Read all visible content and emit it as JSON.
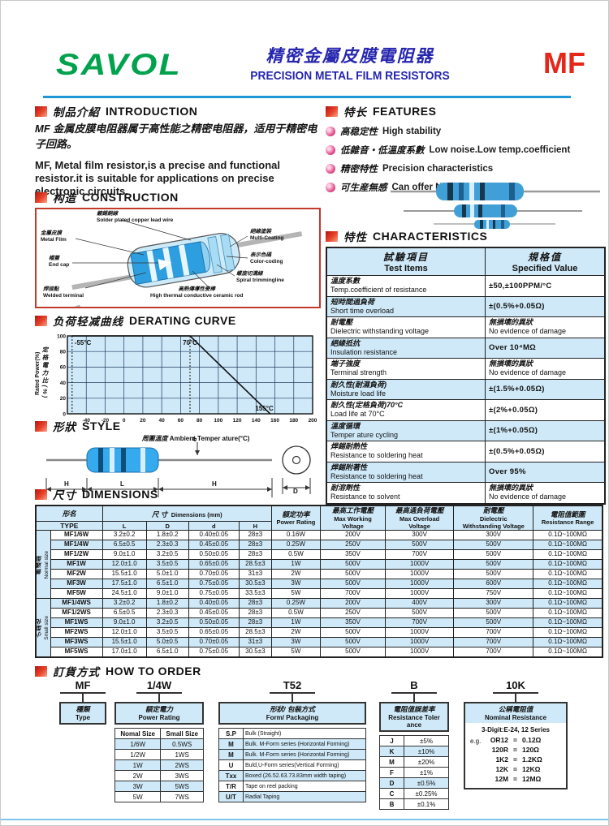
{
  "header": {
    "logo": "SAVOL",
    "title_cn": "精密金屬皮膜電阻器",
    "title_en": "PRECISION METAL FILM RESISTORS",
    "product_code": "MF"
  },
  "intro": {
    "title_cn": "制品介紹",
    "title_en": "INTRODUCTION",
    "body_cn": "MF 金属皮膜电阻器属于高性能之精密电阻器，适用于精密电子回路。",
    "body_en": "MF, Metal film resistor,is a precise and functional resistor.it is suitable for applications on precise electronic circuits."
  },
  "features": {
    "title_cn": "特长",
    "title_en": "FEATURES",
    "items": [
      {
        "cn": "高稳定性",
        "en": "High stability"
      },
      {
        "cn": "低雜音・低溫度系數",
        "en": "Low noise.Low temp.coefficient"
      },
      {
        "cn": "精密特性",
        "en": "Precision characteristics"
      },
      {
        "cn": "可生産無感",
        "en": "Can offer Non-Inductive"
      }
    ]
  },
  "construction": {
    "title_cn": "构造",
    "title_en": "CONSTRUCTION",
    "labels": {
      "lead": {
        "cn": "鍍錫銅線",
        "en": "Solder plated copper lead wire"
      },
      "film": {
        "cn": "金屬皮膜",
        "en": "Metal Film"
      },
      "cap": {
        "cn": "帽蓋",
        "en": "End cap"
      },
      "weld": {
        "cn": "焊接點",
        "en": "Welded terminal"
      },
      "coat": {
        "cn": "絕緣塗裝",
        "en": "Multi-Coating"
      },
      "color": {
        "cn": "表示色碼",
        "en": "Color-coding"
      },
      "spiral": {
        "cn": "螺旋切溝線",
        "en": "Spiral trimmingline"
      },
      "rod": {
        "cn": "高熱傳導性瓷棒",
        "en": "High thermal conductive ceramic rod"
      }
    }
  },
  "derating": {
    "title_cn": "负荷轻减曲线",
    "title_en": "DERATING CURVE"
  },
  "chart_data": {
    "type": "line",
    "title": "DERATING CURVE",
    "xlabel_cn": "周圍溫度",
    "xlabel_en": "Ambient Temper ature(°C)",
    "ylabel_cn": "定格電力比(%)",
    "ylabel_en": "Rated Power(%)",
    "x_ticks": [
      -40,
      -20,
      0,
      20,
      40,
      60,
      80,
      100,
      120,
      140,
      160,
      180,
      200
    ],
    "y_ticks": [
      0,
      20,
      40,
      60,
      80,
      100
    ],
    "xlim": [
      -60,
      200
    ],
    "ylim": [
      0,
      100
    ],
    "grid": true,
    "plot_bg": "#cfe9f8",
    "series": [
      {
        "name": "derating-line",
        "points": [
          [
            -55,
            100
          ],
          [
            70,
            100
          ],
          [
            155,
            0
          ]
        ]
      }
    ],
    "annotations": [
      {
        "label": "-55°C",
        "x": -55,
        "dashed": true,
        "pos": "top-right"
      },
      {
        "label": "70°C",
        "x": 70,
        "dashed": true,
        "pos": "top-mid"
      },
      {
        "label": "155°C",
        "x": 155,
        "dashed": false,
        "pos": "bottom-left"
      }
    ]
  },
  "characteristics": {
    "title_cn": "特性",
    "title_en": "CHARACTERISTICS",
    "col1_cn": "試驗項目",
    "col1_en": "Test Items",
    "col2_cn": "規格值",
    "col2_en": "Specified Value",
    "rows": [
      {
        "cn": "溫度系數",
        "en": "Temp.coefficient of resistance",
        "val_cn": "",
        "val_en": "±50,±100PPM/°C"
      },
      {
        "cn": "短時間過負荷",
        "en": "Short time overload",
        "val_cn": "",
        "val_en": "±(0.5%+0.05Ω)"
      },
      {
        "cn": "耐電壓",
        "en": "Dielectric withstanding voltage",
        "val_cn": "無損壞的異狀",
        "val_en": "No evidence of damage"
      },
      {
        "cn": "絕緣抵抗",
        "en": "Insulation resistance",
        "val_cn": "",
        "val_en": "Over 10⁴MΩ"
      },
      {
        "cn": "端子強度",
        "en": "Terminal strength",
        "val_cn": "無損壞的異狀",
        "val_en": "No evidence of damage"
      },
      {
        "cn": "耐久性(耐濕負荷)",
        "en": "Moisture load life",
        "val_cn": "",
        "val_en": "±(1.5%+0.05Ω)"
      },
      {
        "cn": "耐久性(定格負荷)70°C",
        "en": "Load life at 70°C",
        "val_cn": "",
        "val_en": "±(2%+0.05Ω)"
      },
      {
        "cn": "溫度循環",
        "en": "Temper ature cycling",
        "val_cn": "",
        "val_en": "±(1%+0.05Ω)"
      },
      {
        "cn": "焊錫耐熱性",
        "en": "Resistance to soldering heat",
        "val_cn": "",
        "val_en": "±(0.5%+0.05Ω)"
      },
      {
        "cn": "焊錫附著性",
        "en": "Resistance to soldering heat",
        "val_cn": "",
        "val_en": "Over 95%"
      },
      {
        "cn": "耐溶劑性",
        "en": "Resistance to solvent",
        "val_cn": "無損壞的異狀",
        "val_en": "No evidence of damage"
      }
    ]
  },
  "style_section": {
    "title_cn": "形狀",
    "title_en": "STYLE",
    "dims": {
      "h_left": "H",
      "l": "L",
      "h_right": "H",
      "d": "d",
      "big_d": "D"
    }
  },
  "dimensions": {
    "title_cn": "尺寸",
    "title_en": "DIMENSIONS",
    "headers": {
      "type_cn": "形名",
      "type_en": "TYPE",
      "dims_cn": "尺 寸",
      "dims_en": "Dimensions (mm)",
      "l": "L",
      "d_cap": "D",
      "d_low": "d",
      "h": "H",
      "power_cn": "額定功率",
      "power_en": "Power Rating",
      "work_cn": "最高工作電壓",
      "work_en1": "Max Working",
      "work_en2": "Voltage",
      "over_cn": "最高過負荷電壓",
      "over_en1": "Max Overload",
      "over_en2": "Voltage",
      "diel_cn": "耐電壓",
      "diel_en1": "Dielectric",
      "diel_en2": "Withstanding Voltage",
      "range_cn": "電阻值範圍",
      "range_en": "Resistance Range"
    },
    "groups": [
      {
        "label_cn": "普通型",
        "label_en": "Normal size",
        "rows": [
          [
            "MF1/6W",
            "3.2±0.2",
            "1.8±0.2",
            "0.40±0.05",
            "28±3",
            "0.16W",
            "200V",
            "300V",
            "300V",
            "0.1Ω~100MΩ"
          ],
          [
            "MF1/4W",
            "6.5±0.5",
            "2.3±0.3",
            "0.45±0.05",
            "28±3",
            "0.25W",
            "250V",
            "500V",
            "500V",
            "0.1Ω~100MΩ"
          ],
          [
            "MF1/2W",
            "9.0±1.0",
            "3.2±0.5",
            "0.50±0.05",
            "28±3",
            "0.5W",
            "350V",
            "700V",
            "500V",
            "0.1Ω~100MΩ"
          ],
          [
            "MF1W",
            "12.0±1.0",
            "3.5±0.5",
            "0.65±0.05",
            "28.5±3",
            "1W",
            "500V",
            "1000V",
            "500V",
            "0.1Ω~100MΩ"
          ],
          [
            "MF2W",
            "15.5±1.0",
            "5.0±1.0",
            "0.70±0.05",
            "31±3",
            "2W",
            "500V",
            "1000V",
            "500V",
            "0.1Ω~100MΩ"
          ],
          [
            "MF3W",
            "17.5±1.0",
            "6.5±1.0",
            "0.75±0.05",
            "30.5±3",
            "3W",
            "500V",
            "1000V",
            "600V",
            "0.1Ω~100MΩ"
          ],
          [
            "MF5W",
            "24.5±1.0",
            "9.0±1.0",
            "0.75±0.05",
            "33.5±3",
            "5W",
            "700V",
            "1000V",
            "750V",
            "0.1Ω~100MΩ"
          ]
        ]
      },
      {
        "label_cn": "小型化",
        "label_en": "Small size",
        "rows": [
          [
            "MF1/4WS",
            "3.2±0.2",
            "1.8±0.2",
            "0.40±0.05",
            "28±3",
            "0.25W",
            "200V",
            "400V",
            "300V",
            "0.1Ω~100MΩ"
          ],
          [
            "MF1/2WS",
            "6.5±0.5",
            "2.3±0.3",
            "0.45±0.05",
            "28±3",
            "0.5W",
            "250V",
            "500V",
            "500V",
            "0.1Ω~100MΩ"
          ],
          [
            "MF1WS",
            "9.0±1.0",
            "3.2±0.5",
            "0.50±0.05",
            "28±3",
            "1W",
            "350V",
            "700V",
            "500V",
            "0.1Ω~100MΩ"
          ],
          [
            "MF2WS",
            "12.0±1.0",
            "3.5±0.5",
            "0.65±0.05",
            "28.5±3",
            "2W",
            "500V",
            "1000V",
            "700V",
            "0.1Ω~100MΩ"
          ],
          [
            "MF3WS",
            "15.5±1.0",
            "5.0±0.5",
            "0.70±0.05",
            "31±3",
            "3W",
            "500V",
            "1000V",
            "700V",
            "0.1Ω~100MΩ"
          ],
          [
            "MF5WS",
            "17.0±1.0",
            "6.5±1.0",
            "0.75±0.05",
            "30.5±3",
            "5W",
            "500V",
            "1000V",
            "700V",
            "0.1Ω~100MΩ"
          ]
        ]
      }
    ]
  },
  "order": {
    "title_cn": "訂貨方式",
    "title_en": "HOW TO ORDER",
    "codes": [
      "MF",
      "1/4W",
      "T52",
      "B",
      "10K"
    ],
    "boxes": {
      "type": {
        "cn": "種類",
        "en": "Type"
      },
      "power": {
        "cn": "額定電力",
        "en": "Power Rating",
        "header": [
          "Nomal Size",
          "Small Size"
        ],
        "rows": [
          [
            "1/6W",
            "0.5WS"
          ],
          [
            "1/2W",
            "1WS"
          ],
          [
            "1W",
            "2WS"
          ],
          [
            "2W",
            "3WS"
          ],
          [
            "3W",
            "5WS"
          ],
          [
            "5W",
            "7WS"
          ]
        ],
        "shaded_rows": [
          0,
          2,
          4
        ]
      },
      "form": {
        "cn": "形狀/ 包裝方式",
        "en": "Form/ Packaging",
        "rows": [
          [
            "S.P",
            "Bulk (Straight)"
          ],
          [
            "M",
            "Bulk. M-Form series (Horizontal Forming)"
          ],
          [
            "M",
            "Bulk. M-Form series (Horizontal Forming)"
          ],
          [
            "U",
            "Buld,U-Form series(Vertical Forming)"
          ],
          [
            "Txx",
            "Boxed (26.52.63.73.83mm width taping)"
          ],
          [
            "T/R",
            "Tape on reel packing"
          ],
          [
            "U/T",
            "Radial Taping"
          ]
        ],
        "shaded_rows": [
          1,
          2,
          4,
          6
        ]
      },
      "tolerance": {
        "cn": "電阻值誤差率",
        "en": "Resistance Toler ance",
        "rows": [
          [
            "J",
            "±5%"
          ],
          [
            "K",
            "±10%"
          ],
          [
            "M",
            "±20%"
          ],
          [
            "F",
            "±1%"
          ],
          [
            "D",
            "±0.5%"
          ],
          [
            "C",
            "±0.25%"
          ],
          [
            "B",
            "±0.1%"
          ]
        ],
        "shaded_rows": [
          1,
          4
        ]
      },
      "nominal": {
        "cn": "公稱電阻值",
        "en": "Nominal Resistance",
        "series_note": "3-Digit:E-24, 12 Series",
        "eg": "e.g.",
        "rows": [
          [
            "OR12",
            "0.12Ω"
          ],
          [
            "120R",
            "120Ω"
          ],
          [
            "1K2",
            "1.2KΩ"
          ],
          [
            "12K",
            "12KΩ"
          ],
          [
            "12M",
            "12MΩ"
          ]
        ]
      }
    }
  },
  "colors": {
    "accent_blue": "#2626ae",
    "logo_green": "#00a24d",
    "code_red": "#e62619",
    "rule_blue": "#1f97d4",
    "table_shade": "#cfe9f8",
    "frame_red": "#c0392b"
  }
}
